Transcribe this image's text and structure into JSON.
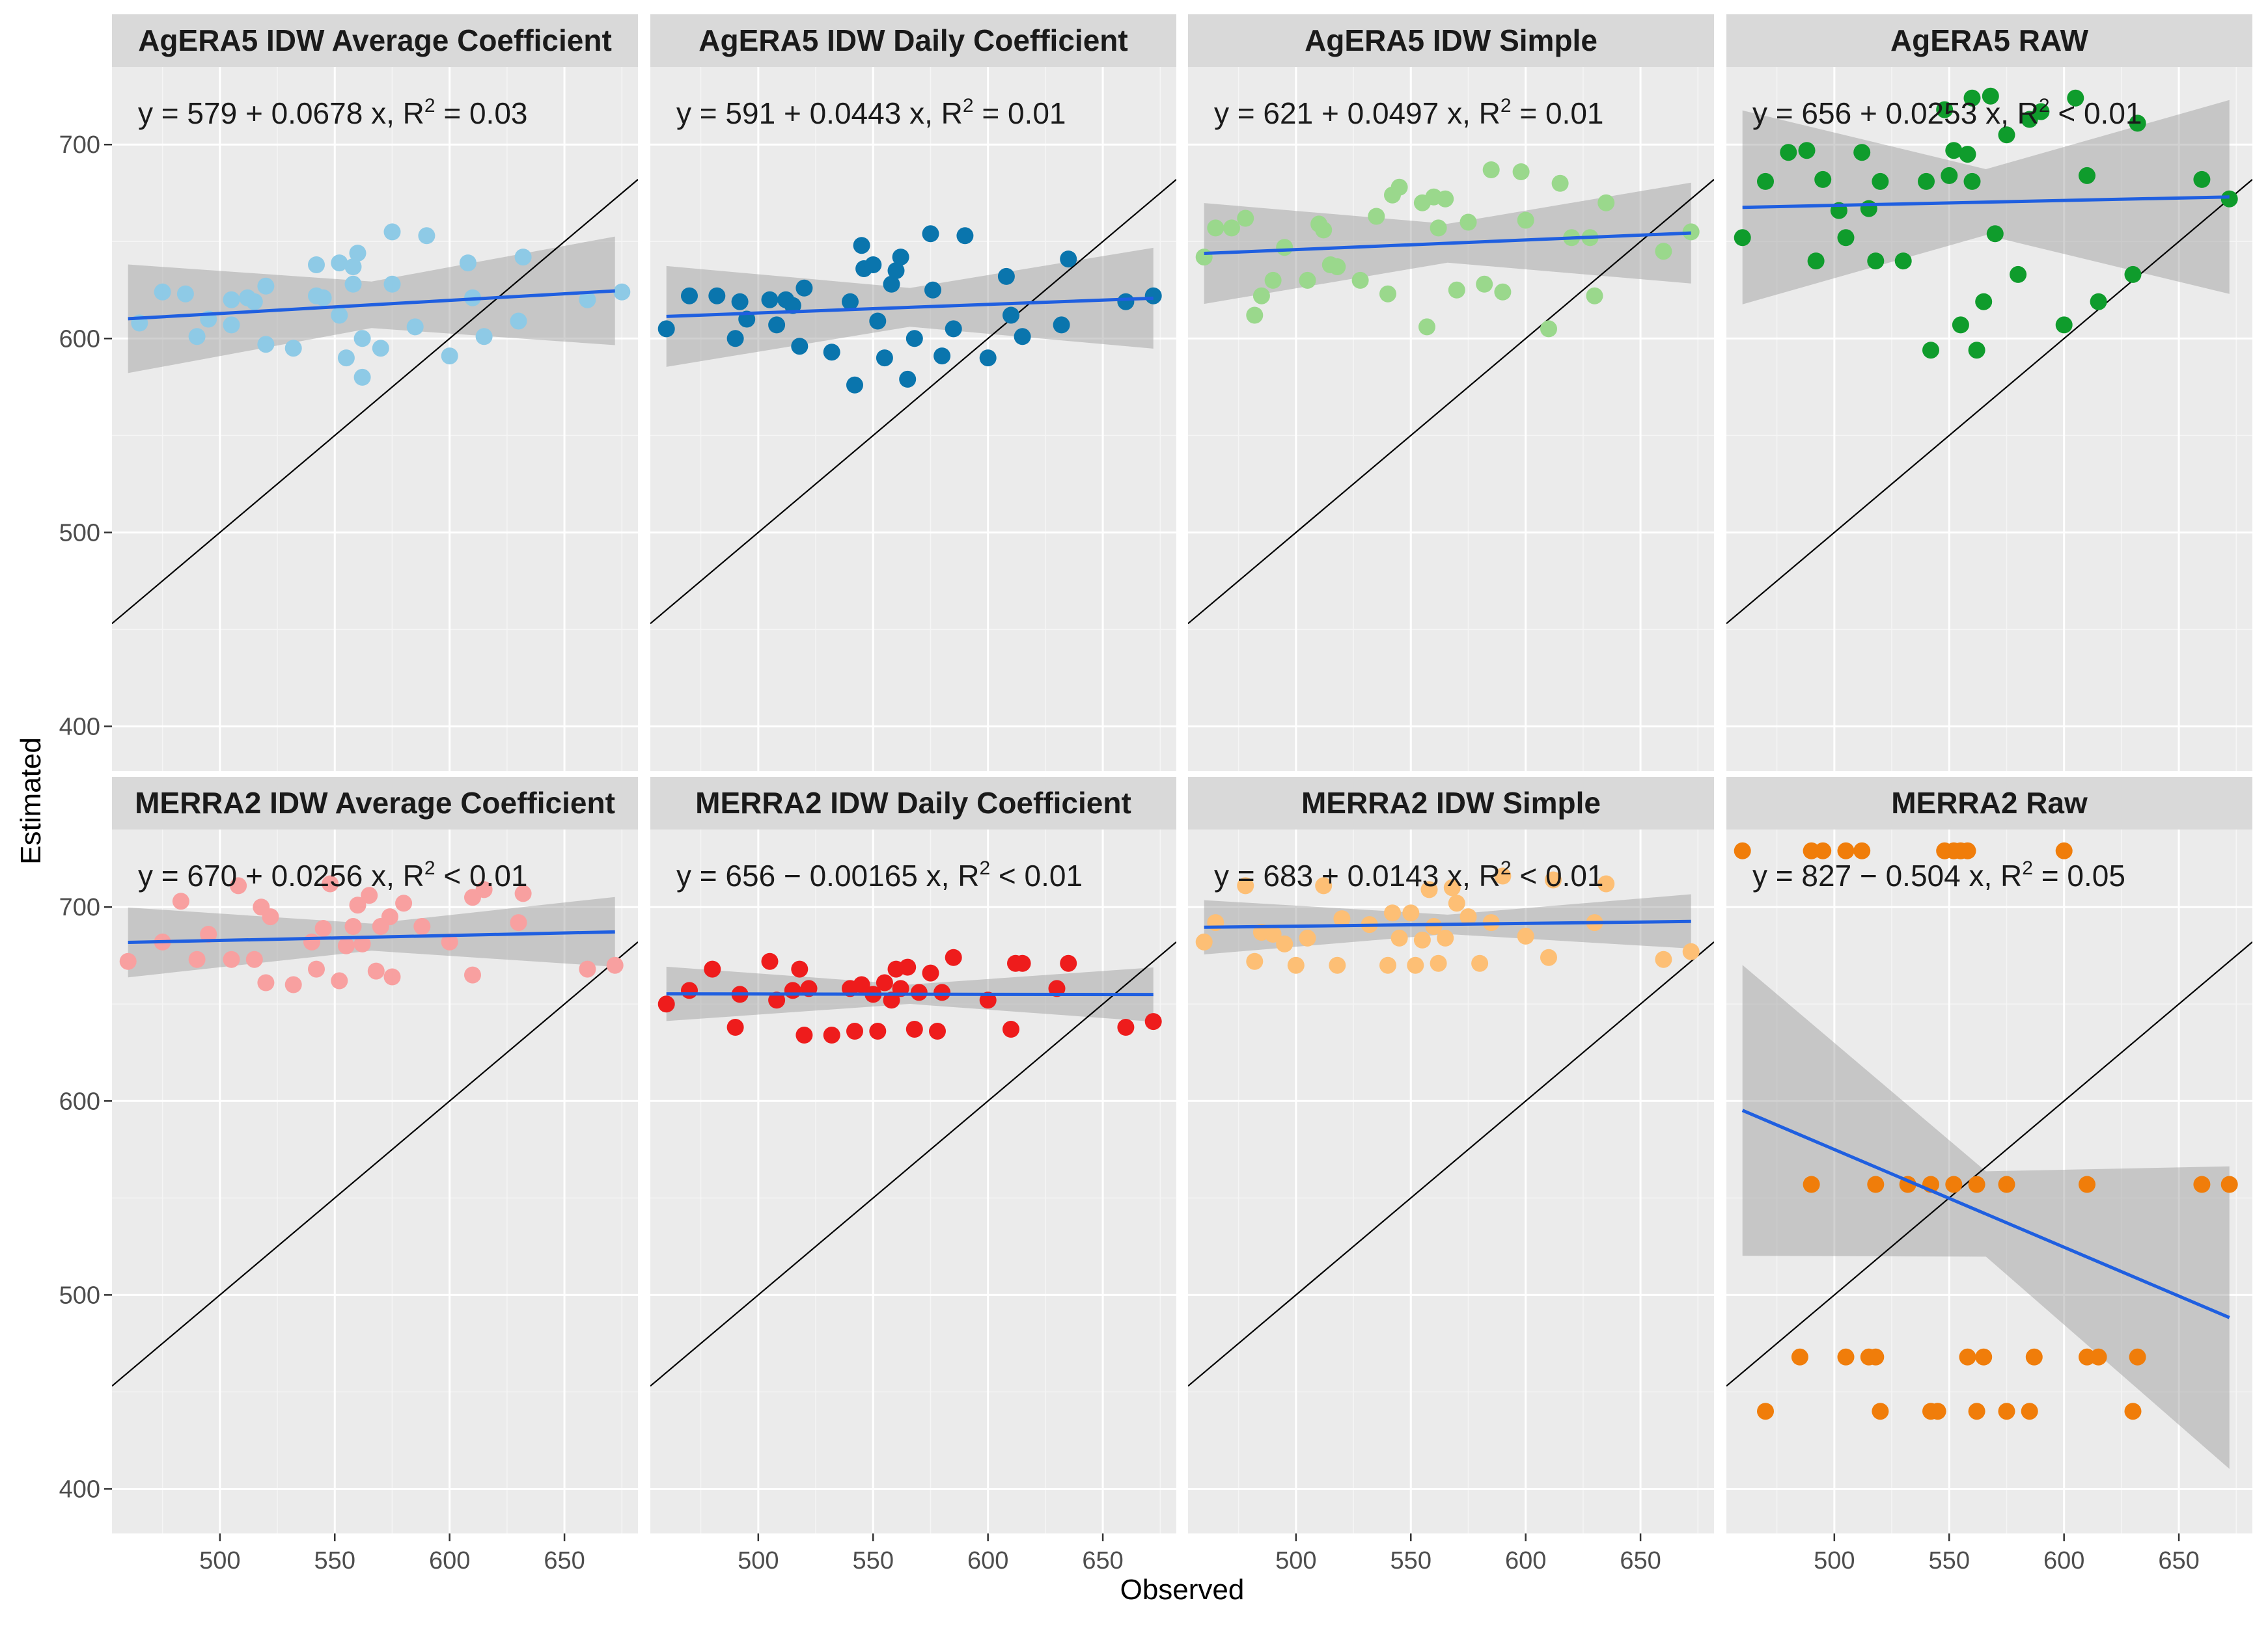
{
  "figure": {
    "xlabel": "Observed",
    "ylabel": "Estimated"
  },
  "chart_data": [
    {
      "type": "scatter",
      "title": "AgERA5 IDW Average Coefficient",
      "equation": "y = 579 + 0.0678 x, R² = 0.03",
      "eq_main": "y = 579 + 0.0678 x, R",
      "eq_exp": "2",
      "eq_tail": " = 0.03",
      "color": "#8ecae6",
      "fit": {
        "intercept": 579,
        "slope": 0.0678
      },
      "band": [
        28,
        12,
        28
      ],
      "points": [
        [
          465,
          608
        ],
        [
          475,
          624
        ],
        [
          485,
          623
        ],
        [
          490,
          601
        ],
        [
          495,
          610
        ],
        [
          505,
          620
        ],
        [
          505,
          607
        ],
        [
          512,
          621
        ],
        [
          515,
          619
        ],
        [
          520,
          597
        ],
        [
          520,
          627
        ],
        [
          532,
          595
        ],
        [
          542,
          638
        ],
        [
          542,
          622
        ],
        [
          545,
          621
        ],
        [
          552,
          639
        ],
        [
          552,
          612
        ],
        [
          555,
          590
        ],
        [
          558,
          637
        ],
        [
          558,
          628
        ],
        [
          560,
          644
        ],
        [
          562,
          580
        ],
        [
          562,
          600
        ],
        [
          570,
          595
        ],
        [
          575,
          655
        ],
        [
          575,
          628
        ],
        [
          585,
          606
        ],
        [
          590,
          653
        ],
        [
          600,
          591
        ],
        [
          608,
          639
        ],
        [
          610,
          621
        ],
        [
          615,
          601
        ],
        [
          630,
          609
        ],
        [
          632,
          642
        ],
        [
          660,
          620
        ],
        [
          675,
          624
        ]
      ]
    },
    {
      "type": "scatter",
      "title": "AgERA5 IDW Daily Coefficient",
      "equation": "y = 591 + 0.0443 x, R² = 0.01",
      "eq_main": "y = 591 + 0.0443 x, R",
      "eq_exp": "2",
      "eq_tail": " = 0.01",
      "color": "#0a75ad",
      "fit": {
        "intercept": 591,
        "slope": 0.0443
      },
      "band": [
        26,
        10,
        26
      ],
      "points": [
        [
          460,
          605
        ],
        [
          470,
          622
        ],
        [
          482,
          622
        ],
        [
          490,
          600
        ],
        [
          492,
          619
        ],
        [
          495,
          610
        ],
        [
          505,
          620
        ],
        [
          508,
          607
        ],
        [
          512,
          620
        ],
        [
          515,
          617
        ],
        [
          518,
          596
        ],
        [
          520,
          626
        ],
        [
          532,
          593
        ],
        [
          540,
          619
        ],
        [
          542,
          576
        ],
        [
          545,
          648
        ],
        [
          546,
          636
        ],
        [
          550,
          638
        ],
        [
          552,
          609
        ],
        [
          555,
          590
        ],
        [
          558,
          628
        ],
        [
          560,
          635
        ],
        [
          562,
          642
        ],
        [
          565,
          579
        ],
        [
          568,
          600
        ],
        [
          575,
          654
        ],
        [
          576,
          625
        ],
        [
          580,
          591
        ],
        [
          585,
          605
        ],
        [
          590,
          653
        ],
        [
          600,
          590
        ],
        [
          608,
          632
        ],
        [
          610,
          612
        ],
        [
          615,
          601
        ],
        [
          632,
          607
        ],
        [
          635,
          641
        ],
        [
          660,
          619
        ],
        [
          672,
          622
        ]
      ]
    },
    {
      "type": "scatter",
      "title": "AgERA5 IDW Simple",
      "equation": "y = 621 + 0.0497 x, R² = 0.01",
      "eq_main": "y = 621 + 0.0497 x, R",
      "eq_exp": "2",
      "eq_tail": " = 0.01",
      "color": "#9ad88c",
      "fit": {
        "intercept": 621,
        "slope": 0.0497
      },
      "band": [
        26,
        10,
        26
      ],
      "points": [
        [
          460,
          642
        ],
        [
          465,
          657
        ],
        [
          472,
          657
        ],
        [
          478,
          662
        ],
        [
          482,
          612
        ],
        [
          485,
          622
        ],
        [
          490,
          630
        ],
        [
          495,
          647
        ],
        [
          505,
          630
        ],
        [
          510,
          659
        ],
        [
          512,
          656
        ],
        [
          515,
          638
        ],
        [
          518,
          637
        ],
        [
          528,
          630
        ],
        [
          535,
          663
        ],
        [
          540,
          623
        ],
        [
          542,
          674
        ],
        [
          545,
          678
        ],
        [
          555,
          670
        ],
        [
          557,
          606
        ],
        [
          560,
          673
        ],
        [
          562,
          657
        ],
        [
          565,
          672
        ],
        [
          570,
          625
        ],
        [
          575,
          660
        ],
        [
          582,
          628
        ],
        [
          585,
          687
        ],
        [
          590,
          624
        ],
        [
          598,
          686
        ],
        [
          600,
          661
        ],
        [
          610,
          605
        ],
        [
          615,
          680
        ],
        [
          620,
          652
        ],
        [
          628,
          652
        ],
        [
          630,
          622
        ],
        [
          635,
          670
        ],
        [
          660,
          645
        ],
        [
          672,
          655
        ]
      ]
    },
    {
      "type": "scatter",
      "title": "AgERA5 RAW",
      "equation": "y = 656 + 0.0253 x, R² < 0.01",
      "eq_main": "y = 656 + 0.0253 x, R",
      "eq_exp": "2",
      "eq_tail": " < 0.01",
      "color": "#0f9c2c",
      "fit": {
        "intercept": 656,
        "slope": 0.0253
      },
      "band": [
        50,
        17,
        50
      ],
      "points": [
        [
          460,
          652
        ],
        [
          470,
          681
        ],
        [
          480,
          696
        ],
        [
          488,
          697
        ],
        [
          492,
          640
        ],
        [
          495,
          682
        ],
        [
          502,
          666
        ],
        [
          505,
          652
        ],
        [
          512,
          696
        ],
        [
          515,
          667
        ],
        [
          518,
          640
        ],
        [
          520,
          681
        ],
        [
          530,
          640
        ],
        [
          540,
          681
        ],
        [
          542,
          594
        ],
        [
          550,
          684
        ],
        [
          552,
          697
        ],
        [
          555,
          607
        ],
        [
          558,
          695
        ],
        [
          560,
          681
        ],
        [
          562,
          594
        ],
        [
          565,
          619
        ],
        [
          568,
          725
        ],
        [
          570,
          654
        ],
        [
          575,
          705
        ],
        [
          580,
          633
        ],
        [
          585,
          713
        ],
        [
          590,
          717
        ],
        [
          600,
          607
        ],
        [
          605,
          724
        ],
        [
          610,
          684
        ],
        [
          615,
          619
        ],
        [
          630,
          633
        ],
        [
          632,
          711
        ],
        [
          660,
          682
        ],
        [
          672,
          672
        ],
        [
          548,
          718
        ],
        [
          560,
          724
        ]
      ]
    },
    {
      "type": "scatter",
      "title": "MERRA2 IDW Average Coefficient",
      "equation": "y = 670 + 0.0256 x, R² < 0.01",
      "eq_main": "y = 670 + 0.0256 x, R",
      "eq_exp": "2",
      "eq_tail": " < 0.01",
      "color": "#f8a0a0",
      "fit": {
        "intercept": 670,
        "slope": 0.0256
      },
      "band": [
        18,
        7,
        18
      ],
      "points": [
        [
          460,
          672
        ],
        [
          475,
          682
        ],
        [
          483,
          703
        ],
        [
          490,
          673
        ],
        [
          495,
          686
        ],
        [
          505,
          673
        ],
        [
          508,
          711
        ],
        [
          515,
          673
        ],
        [
          518,
          700
        ],
        [
          520,
          661
        ],
        [
          522,
          695
        ],
        [
          532,
          660
        ],
        [
          540,
          682
        ],
        [
          542,
          668
        ],
        [
          545,
          689
        ],
        [
          548,
          712
        ],
        [
          552,
          662
        ],
        [
          555,
          680
        ],
        [
          558,
          690
        ],
        [
          560,
          701
        ],
        [
          562,
          681
        ],
        [
          565,
          706
        ],
        [
          568,
          667
        ],
        [
          570,
          690
        ],
        [
          575,
          664
        ],
        [
          580,
          702
        ],
        [
          588,
          690
        ],
        [
          600,
          682
        ],
        [
          610,
          665
        ],
        [
          615,
          709
        ],
        [
          630,
          692
        ],
        [
          632,
          707
        ],
        [
          660,
          668
        ],
        [
          672,
          670
        ],
        [
          610,
          705
        ],
        [
          574,
          695
        ]
      ]
    },
    {
      "type": "scatter",
      "title": "MERRA2 IDW Daily Coefficient",
      "equation": "y = 656 − 0.00165 x, R² < 0.01",
      "eq_main": "y = 656 − 0.00165 x, R",
      "eq_exp": "2",
      "eq_tail": " < 0.01",
      "color": "#ee1c1c",
      "fit": {
        "intercept": 656,
        "slope": -0.00165
      },
      "band": [
        14,
        5,
        14
      ],
      "points": [
        [
          460,
          650
        ],
        [
          470,
          657
        ],
        [
          480,
          668
        ],
        [
          490,
          638
        ],
        [
          492,
          655
        ],
        [
          505,
          672
        ],
        [
          508,
          652
        ],
        [
          515,
          657
        ],
        [
          518,
          668
        ],
        [
          520,
          634
        ],
        [
          522,
          658
        ],
        [
          532,
          634
        ],
        [
          540,
          658
        ],
        [
          542,
          636
        ],
        [
          545,
          660
        ],
        [
          550,
          655
        ],
        [
          552,
          636
        ],
        [
          555,
          661
        ],
        [
          558,
          652
        ],
        [
          560,
          668
        ],
        [
          562,
          658
        ],
        [
          565,
          669
        ],
        [
          568,
          637
        ],
        [
          570,
          656
        ],
        [
          575,
          666
        ],
        [
          578,
          636
        ],
        [
          580,
          656
        ],
        [
          585,
          674
        ],
        [
          600,
          652
        ],
        [
          610,
          637
        ],
        [
          612,
          671
        ],
        [
          615,
          671
        ],
        [
          630,
          658
        ],
        [
          635,
          671
        ],
        [
          660,
          638
        ],
        [
          672,
          641
        ]
      ]
    },
    {
      "type": "scatter",
      "title": "MERRA2 IDW Simple",
      "equation": "y = 683 + 0.0143 x, R² < 0.01",
      "eq_main": "y = 683 + 0.0143 x, R",
      "eq_exp": "2",
      "eq_tail": " < 0.01",
      "color": "#fdbf75",
      "fit": {
        "intercept": 683,
        "slope": 0.0143
      },
      "band": [
        14,
        5,
        14
      ],
      "points": [
        [
          460,
          682
        ],
        [
          465,
          692
        ],
        [
          478,
          711
        ],
        [
          482,
          672
        ],
        [
          485,
          687
        ],
        [
          490,
          686
        ],
        [
          495,
          681
        ],
        [
          500,
          670
        ],
        [
          505,
          684
        ],
        [
          512,
          711
        ],
        [
          518,
          670
        ],
        [
          520,
          694
        ],
        [
          532,
          691
        ],
        [
          540,
          670
        ],
        [
          542,
          697
        ],
        [
          545,
          684
        ],
        [
          550,
          697
        ],
        [
          552,
          670
        ],
        [
          555,
          683
        ],
        [
          558,
          709
        ],
        [
          560,
          690
        ],
        [
          562,
          671
        ],
        [
          565,
          684
        ],
        [
          568,
          710
        ],
        [
          570,
          702
        ],
        [
          575,
          695
        ],
        [
          580,
          671
        ],
        [
          585,
          692
        ],
        [
          590,
          716
        ],
        [
          600,
          685
        ],
        [
          610,
          674
        ],
        [
          612,
          714
        ],
        [
          630,
          692
        ],
        [
          635,
          712
        ],
        [
          660,
          673
        ],
        [
          672,
          677
        ]
      ]
    },
    {
      "type": "scatter",
      "title": "MERRA2 Raw",
      "equation": "y = 827 − 0.504 x, R² = 0.05",
      "eq_main": "y = 827 − 0.504 x, R",
      "eq_exp": "2",
      "eq_tail": " = 0.05",
      "color": "#f07d0a",
      "fit": {
        "intercept": 827,
        "slope": -0.504
      },
      "band": [
        75,
        22,
        78
      ],
      "points": [
        [
          460,
          729
        ],
        [
          490,
          729
        ],
        [
          495,
          729
        ],
        [
          505,
          729
        ],
        [
          512,
          729
        ],
        [
          548,
          729
        ],
        [
          552,
          729
        ],
        [
          555,
          729
        ],
        [
          558,
          729
        ],
        [
          600,
          729
        ],
        [
          490,
          557
        ],
        [
          518,
          557
        ],
        [
          532,
          557
        ],
        [
          542,
          557
        ],
        [
          552,
          557
        ],
        [
          562,
          557
        ],
        [
          575,
          557
        ],
        [
          610,
          557
        ],
        [
          660,
          557
        ],
        [
          672,
          557
        ],
        [
          485,
          468
        ],
        [
          505,
          468
        ],
        [
          515,
          468
        ],
        [
          518,
          468
        ],
        [
          558,
          468
        ],
        [
          565,
          468
        ],
        [
          587,
          468
        ],
        [
          610,
          468
        ],
        [
          615,
          468
        ],
        [
          632,
          468
        ],
        [
          470,
          440
        ],
        [
          520,
          440
        ],
        [
          542,
          440
        ],
        [
          545,
          440
        ],
        [
          562,
          440
        ],
        [
          575,
          440
        ],
        [
          585,
          440
        ],
        [
          630,
          440
        ]
      ]
    }
  ],
  "axes": {
    "x_ticks": [
      "500",
      "550",
      "600",
      "650"
    ],
    "x_values": [
      500,
      550,
      600,
      650
    ],
    "x_range": [
      453,
      682
    ],
    "y_ticks": [
      "400",
      "500",
      "600",
      "700"
    ],
    "y_values": [
      400,
      500,
      600,
      700
    ],
    "y_range": [
      377,
      740
    ]
  }
}
